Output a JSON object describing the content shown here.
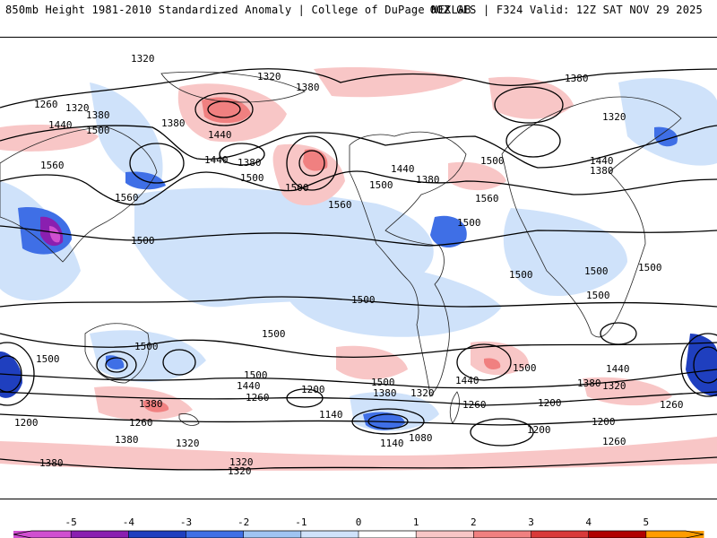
{
  "header": {
    "left": "850mb Height 1981-2010 Standardized Anomaly | College of DuPage NEXLAB",
    "right": "00Z GFS | F324 Valid: 12Z SAT NOV 29 2025"
  },
  "contours": {
    "labels": [
      "1320",
      "1320",
      "1260",
      "1320",
      "1380",
      "1440",
      "1500",
      "1380",
      "1440",
      "1380",
      "1560",
      "1440",
      "1500",
      "1560",
      "1500",
      "1380",
      "1500",
      "1440",
      "1380",
      "1500",
      "1560",
      "1380",
      "1320",
      "1440",
      "1380",
      "1500",
      "1500",
      "1500",
      "1500",
      "1560",
      "1500",
      "1500",
      "1500",
      "1500",
      "1500",
      "1500",
      "1500",
      "1440",
      "1500",
      "1440",
      "1380",
      "1320",
      "1260",
      "1200",
      "1140",
      "1080",
      "1140",
      "1200",
      "1200",
      "1260",
      "1380",
      "1500",
      "1440",
      "1380",
      "1320",
      "1260",
      "1200",
      "1260",
      "1320",
      "1380",
      "1200",
      "1260",
      "1320",
      "1380",
      "1320"
    ]
  },
  "legend": {
    "ticks": [
      "-5",
      "-4",
      "-3",
      "-2",
      "-1",
      "0",
      "1",
      "2",
      "3",
      "4",
      "5"
    ],
    "colors": [
      "#d04fd0",
      "#8a1fb0",
      "#1f3fbf",
      "#3f6fe6",
      "#9fc4f2",
      "#cfe2fa",
      "#ffffff",
      "#f8c6c6",
      "#f08080",
      "#d83a3a",
      "#b00000",
      "#ff9c00"
    ]
  }
}
